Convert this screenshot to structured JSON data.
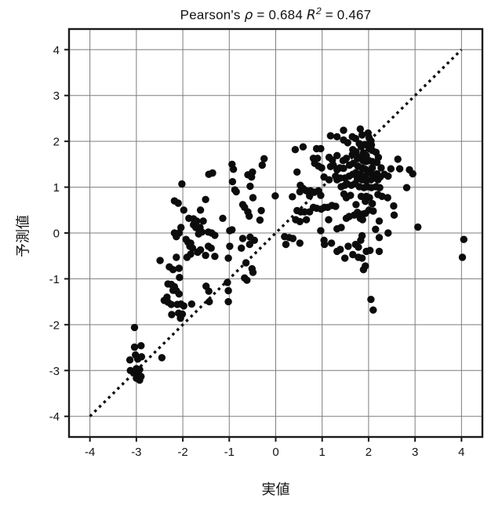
{
  "title": {
    "prefix": "Pearson's ",
    "rho_symbol": "ρ",
    "rho_eq": " =  ",
    "rho_value": "0.684",
    "spacer": "  ",
    "r_symbol": "R",
    "r_exponent": "2",
    "r_eq": " =  ",
    "r_value": "0.467"
  },
  "chart_data": {
    "type": "scatter",
    "title": "Pearson's ρ = 0.684  R² = 0.467",
    "xlabel": "実値",
    "ylabel": "予測値",
    "xlim": [
      -4.45,
      4.45
    ],
    "ylim": [
      -4.45,
      4.45
    ],
    "x_ticks": [
      -4,
      -3,
      -2,
      -1,
      0,
      1,
      2,
      3,
      4
    ],
    "y_ticks": [
      -4,
      -3,
      -2,
      -1,
      0,
      1,
      2,
      3,
      4
    ],
    "grid": true,
    "grid_color": "#7d7d7d",
    "frame_color": "#1a1a1a",
    "point_color": "#0c0c0c",
    "point_radius": 4.7,
    "identity_line": {
      "style": "dotted",
      "from": [
        -4,
        -4
      ],
      "to": [
        4,
        4
      ],
      "color": "#111111"
    },
    "points": [
      [
        -3.04,
        -2.06
      ],
      [
        -2.9,
        -2.46
      ],
      [
        -3.04,
        -2.49
      ],
      [
        -3.02,
        -2.66
      ],
      [
        -3.14,
        -2.77
      ],
      [
        -2.97,
        -2.75
      ],
      [
        -2.89,
        -2.7
      ],
      [
        -2.45,
        -2.72
      ],
      [
        -3.13,
        -3.0
      ],
      [
        -3.0,
        -2.96
      ],
      [
        -2.93,
        -2.98
      ],
      [
        -3.03,
        -3.06
      ],
      [
        -2.95,
        -3.08
      ],
      [
        -2.9,
        -3.13
      ],
      [
        -3.0,
        -3.17
      ],
      [
        -2.93,
        -3.21
      ],
      [
        -2.49,
        -0.6
      ],
      [
        -2.29,
        -0.74
      ],
      [
        -2.21,
        -0.8
      ],
      [
        -2.08,
        -0.77
      ],
      [
        -2.07,
        -0.97
      ],
      [
        -2.32,
        -1.11
      ],
      [
        -2.25,
        -1.12
      ],
      [
        -2.18,
        -1.17
      ],
      [
        -2.21,
        -1.25
      ],
      [
        -2.14,
        -1.26
      ],
      [
        -2.08,
        -1.33
      ],
      [
        -2.34,
        -1.4
      ],
      [
        -2.4,
        -1.47
      ],
      [
        -2.32,
        -1.51
      ],
      [
        -2.25,
        -1.56
      ],
      [
        -2.12,
        -1.56
      ],
      [
        -2.04,
        -1.55
      ],
      [
        -1.98,
        -1.59
      ],
      [
        -2.24,
        -1.78
      ],
      [
        -2.09,
        -1.75
      ],
      [
        -2.01,
        -1.77
      ],
      [
        -2.05,
        -1.86
      ],
      [
        -1.81,
        -1.55
      ],
      [
        -1.5,
        -1.16
      ],
      [
        -1.44,
        -1.27
      ],
      [
        -1.43,
        -1.5
      ],
      [
        -1.04,
        -1.08
      ],
      [
        -1.02,
        -1.26
      ],
      [
        -1.02,
        -1.5
      ],
      [
        -2.14,
        -0.53
      ],
      [
        -1.91,
        -0.53
      ],
      [
        -1.51,
        -0.49
      ],
      [
        -1.31,
        -0.51
      ],
      [
        -1.02,
        -0.55
      ],
      [
        -0.64,
        -0.65
      ],
      [
        -0.51,
        -0.78
      ],
      [
        -0.49,
        -0.86
      ],
      [
        -0.67,
        -0.98
      ],
      [
        -0.62,
        -1.03
      ],
      [
        -2.02,
        1.07
      ],
      [
        -1.44,
        1.28
      ],
      [
        -1.36,
        1.31
      ],
      [
        -2.18,
        0.7
      ],
      [
        -2.1,
        0.65
      ],
      [
        -1.98,
        0.5
      ],
      [
        -1.62,
        0.5
      ],
      [
        -1.51,
        0.73
      ],
      [
        -1.87,
        0.32
      ],
      [
        -1.77,
        0.31
      ],
      [
        -1.7,
        0.26
      ],
      [
        -1.56,
        0.26
      ],
      [
        -1.77,
        0.18
      ],
      [
        -1.72,
        0.12
      ],
      [
        -1.63,
        0.12
      ],
      [
        -2.04,
        0.12
      ],
      [
        -2.08,
        0.0
      ],
      [
        -2.18,
        0.0
      ],
      [
        -2.14,
        -0.08
      ],
      [
        -1.93,
        -0.14
      ],
      [
        -1.89,
        -0.2
      ],
      [
        -1.83,
        -0.22
      ],
      [
        -1.85,
        -0.29
      ],
      [
        -1.79,
        -0.33
      ],
      [
        -1.66,
        -0.02
      ],
      [
        -1.59,
        0.02
      ],
      [
        -1.45,
        0.02
      ],
      [
        -1.38,
        0.0
      ],
      [
        -1.31,
        -0.05
      ],
      [
        -1.83,
        -0.46
      ],
      [
        -1.68,
        -0.42
      ],
      [
        -1.62,
        -0.37
      ],
      [
        -1.45,
        -0.29
      ],
      [
        -1.39,
        -0.33
      ],
      [
        -1.14,
        0.32
      ],
      [
        -0.94,
        1.5
      ],
      [
        -0.91,
        1.39
      ],
      [
        -0.93,
        1.12
      ],
      [
        -0.88,
        0.94
      ],
      [
        -0.85,
        0.9
      ],
      [
        -0.6,
        1.27
      ],
      [
        -0.5,
        1.33
      ],
      [
        -0.52,
        1.22
      ],
      [
        -0.71,
        0.62
      ],
      [
        -0.67,
        0.56
      ],
      [
        -0.6,
        0.46
      ],
      [
        -0.57,
        0.37
      ],
      [
        -0.99,
        0.05
      ],
      [
        -0.94,
        0.07
      ],
      [
        -0.71,
        -0.12
      ],
      [
        -0.55,
        -0.09
      ],
      [
        -0.46,
        -0.16
      ],
      [
        -0.56,
        -0.25
      ],
      [
        -0.99,
        -0.29
      ],
      [
        -0.74,
        -0.33
      ],
      [
        -0.55,
        1.02
      ],
      [
        -0.25,
        1.62
      ],
      [
        -0.29,
        1.48
      ],
      [
        -0.49,
        0.77
      ],
      [
        -0.31,
        0.49
      ],
      [
        -0.34,
        0.28
      ],
      [
        -0.01,
        0.81
      ],
      [
        0.36,
        0.79
      ],
      [
        0.42,
        1.82
      ],
      [
        0.59,
        1.88
      ],
      [
        0.46,
        1.33
      ],
      [
        0.88,
        1.84
      ],
      [
        0.97,
        1.84
      ],
      [
        0.81,
        1.63
      ],
      [
        0.9,
        1.63
      ],
      [
        0.84,
        1.52
      ],
      [
        0.92,
        1.46
      ],
      [
        0.99,
        1.42
      ],
      [
        1.18,
        2.12
      ],
      [
        1.32,
        2.1
      ],
      [
        1.15,
        1.65
      ],
      [
        1.22,
        1.59
      ],
      [
        1.24,
        1.48
      ],
      [
        1.18,
        1.45
      ],
      [
        1.04,
        1.22
      ],
      [
        1.29,
        1.24
      ],
      [
        1.15,
        1.16
      ],
      [
        0.53,
        1.04
      ],
      [
        0.59,
        0.97
      ],
      [
        0.66,
        0.92
      ],
      [
        0.52,
        0.9
      ],
      [
        0.75,
        0.92
      ],
      [
        0.83,
        0.89
      ],
      [
        0.92,
        0.92
      ],
      [
        0.97,
        0.82
      ],
      [
        0.73,
        0.81
      ],
      [
        0.46,
        0.49
      ],
      [
        0.54,
        0.46
      ],
      [
        0.62,
        0.46
      ],
      [
        0.43,
        0.29
      ],
      [
        0.52,
        0.25
      ],
      [
        0.66,
        0.29
      ],
      [
        0.73,
        0.46
      ],
      [
        0.81,
        0.56
      ],
      [
        0.88,
        0.54
      ],
      [
        0.98,
        0.52
      ],
      [
        1.05,
        0.56
      ],
      [
        1.12,
        0.56
      ],
      [
        1.21,
        0.6
      ],
      [
        1.29,
        0.58
      ],
      [
        1.14,
        0.29
      ],
      [
        0.97,
        0.05
      ],
      [
        1.04,
        -0.16
      ],
      [
        1.05,
        -0.25
      ],
      [
        1.2,
        -0.22
      ],
      [
        0.19,
        -0.08
      ],
      [
        0.29,
        -0.1
      ],
      [
        0.37,
        -0.12
      ],
      [
        0.22,
        -0.25
      ],
      [
        0.52,
        -0.22
      ],
      [
        1.46,
        2.24
      ],
      [
        1.82,
        2.27
      ],
      [
        1.86,
        2.14
      ],
      [
        1.65,
        2.1
      ],
      [
        1.72,
        2.06
      ],
      [
        1.99,
        2.18
      ],
      [
        2.01,
        2.08
      ],
      [
        2.05,
        2.01
      ],
      [
        1.46,
        2.03
      ],
      [
        1.55,
        1.97
      ],
      [
        1.8,
        1.95
      ],
      [
        1.84,
        1.88
      ],
      [
        1.92,
        1.93
      ],
      [
        1.99,
        1.94
      ],
      [
        2.06,
        1.92
      ],
      [
        2.01,
        1.84
      ],
      [
        2.08,
        1.8
      ],
      [
        1.66,
        1.82
      ],
      [
        1.73,
        1.77
      ],
      [
        1.65,
        1.71
      ],
      [
        1.89,
        1.75
      ],
      [
        1.95,
        1.69
      ],
      [
        1.83,
        1.66
      ],
      [
        1.76,
        1.62
      ],
      [
        1.88,
        1.58
      ],
      [
        1.94,
        1.56
      ],
      [
        2.01,
        1.58
      ],
      [
        2.08,
        1.56
      ],
      [
        1.67,
        1.52
      ],
      [
        1.59,
        1.48
      ],
      [
        1.52,
        1.63
      ],
      [
        1.45,
        1.58
      ],
      [
        1.32,
        1.69
      ],
      [
        1.38,
        1.42
      ],
      [
        1.46,
        1.41
      ],
      [
        1.32,
        1.38
      ],
      [
        1.77,
        1.46
      ],
      [
        1.86,
        1.42
      ],
      [
        1.93,
        1.39
      ],
      [
        2.08,
        1.42
      ],
      [
        2.01,
        1.32
      ],
      [
        2.08,
        1.28
      ],
      [
        1.93,
        1.24
      ],
      [
        1.82,
        1.28
      ],
      [
        1.73,
        1.32
      ],
      [
        1.66,
        1.28
      ],
      [
        1.58,
        1.24
      ],
      [
        1.49,
        1.2
      ],
      [
        1.39,
        1.2
      ],
      [
        1.32,
        1.16
      ],
      [
        1.76,
        1.18
      ],
      [
        1.86,
        1.16
      ],
      [
        1.95,
        1.14
      ],
      [
        2.05,
        1.16
      ],
      [
        2.11,
        1.2
      ],
      [
        2.2,
        1.16
      ],
      [
        2.25,
        1.22
      ],
      [
        2.18,
        1.29
      ],
      [
        2.27,
        1.42
      ],
      [
        2.18,
        1.54
      ],
      [
        2.21,
        1.65
      ],
      [
        2.16,
        1.76
      ],
      [
        2.34,
        1.28
      ],
      [
        2.42,
        1.24
      ],
      [
        2.48,
        1.4
      ],
      [
        2.63,
        1.61
      ],
      [
        1.71,
        1.08
      ],
      [
        1.63,
        1.04
      ],
      [
        1.53,
        1.08
      ],
      [
        1.49,
        1.04
      ],
      [
        1.41,
        1.01
      ],
      [
        1.8,
        1.01
      ],
      [
        1.9,
        0.99
      ],
      [
        1.97,
        1.01
      ],
      [
        2.06,
        0.99
      ],
      [
        2.16,
        1.01
      ],
      [
        2.24,
        0.99
      ],
      [
        1.47,
        0.85
      ],
      [
        1.52,
        0.77
      ],
      [
        1.61,
        0.82
      ],
      [
        1.84,
        0.8
      ],
      [
        1.95,
        0.8
      ],
      [
        2.02,
        0.77
      ],
      [
        2.2,
        0.84
      ],
      [
        2.29,
        0.8
      ],
      [
        2.41,
        0.77
      ],
      [
        1.73,
        0.62
      ],
      [
        1.93,
        0.69
      ],
      [
        2.08,
        0.64
      ],
      [
        2.01,
        0.5
      ],
      [
        2.1,
        0.48
      ],
      [
        1.93,
        0.43
      ],
      [
        1.87,
        0.41
      ],
      [
        1.76,
        0.45
      ],
      [
        1.69,
        0.39
      ],
      [
        1.58,
        0.36
      ],
      [
        1.52,
        0.32
      ],
      [
        1.82,
        0.32
      ],
      [
        1.87,
        0.29
      ],
      [
        2.23,
        0.26
      ],
      [
        1.41,
        0.12
      ],
      [
        1.32,
        0.09
      ],
      [
        2.15,
        0.08
      ],
      [
        2.42,
        0.0
      ],
      [
        1.86,
        -0.06
      ],
      [
        1.83,
        -0.16
      ],
      [
        2.23,
        -0.1
      ],
      [
        1.72,
        -0.25
      ],
      [
        1.78,
        -0.31
      ],
      [
        1.56,
        -0.29
      ],
      [
        1.39,
        -0.36
      ],
      [
        1.32,
        -0.4
      ],
      [
        1.66,
        -0.47
      ],
      [
        1.95,
        -0.4
      ],
      [
        2.03,
        -0.38
      ],
      [
        2.23,
        -0.4
      ],
      [
        1.78,
        -0.53
      ],
      [
        1.86,
        -0.55
      ],
      [
        1.49,
        -0.55
      ],
      [
        1.93,
        -0.72
      ],
      [
        1.89,
        -0.8
      ],
      [
        2.54,
        0.59
      ],
      [
        2.55,
        0.39
      ],
      [
        2.05,
        -1.45
      ],
      [
        2.1,
        -1.68
      ],
      [
        2.67,
        1.4
      ],
      [
        2.88,
        1.38
      ],
      [
        2.95,
        1.29
      ],
      [
        2.82,
        0.99
      ],
      [
        3.06,
        0.13
      ],
      [
        4.05,
        -0.14
      ],
      [
        4.02,
        -0.53
      ]
    ]
  }
}
